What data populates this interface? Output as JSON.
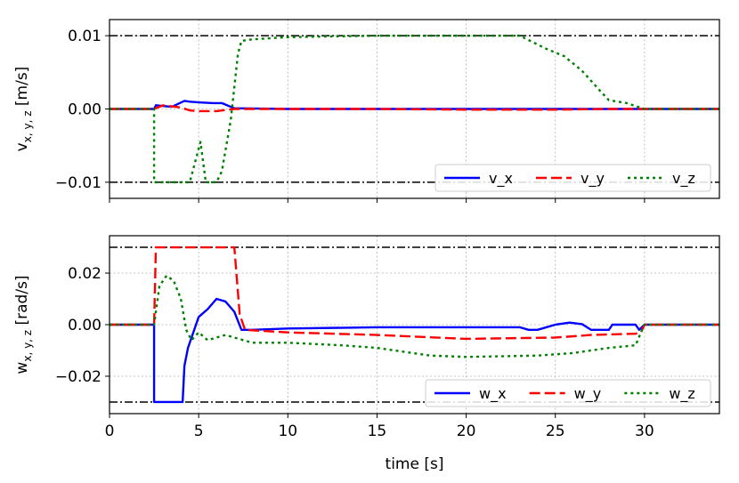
{
  "chart_data": [
    {
      "type": "line",
      "title": "",
      "xlabel": "",
      "ylabel_main": "v",
      "ylabel_sub": "x, y, z",
      "ylabel_unit": "[m/s]",
      "xlim": [
        0,
        34.2
      ],
      "ylim": [
        -0.0122,
        0.0122
      ],
      "yticks": [
        -0.01,
        0.0,
        0.01
      ],
      "ytick_labels": [
        "−0.01",
        "0.00",
        "0.01"
      ],
      "xticks": [
        0,
        5,
        10,
        15,
        20,
        25,
        30
      ],
      "grid": true,
      "legend_position": "lower-right",
      "limit_lines": [
        0.01,
        -0.01
      ],
      "series": [
        {
          "name": "v_x",
          "color": "#0000ff",
          "style": "solid",
          "x": [
            0,
            2.5,
            2.6,
            3.0,
            3.5,
            4.2,
            4.5,
            5.0,
            5.8,
            6.3,
            7.0,
            10,
            20,
            30,
            34.2
          ],
          "y": [
            0,
            0,
            0.0005,
            0.0004,
            0.0003,
            0.0011,
            0.001,
            0.0009,
            0.0008,
            0.0008,
            0.0001,
            0,
            0,
            0,
            0
          ]
        },
        {
          "name": "v_y",
          "color": "#ff0000",
          "style": "dashed",
          "x": [
            0,
            2.5,
            3.0,
            4.0,
            4.5,
            5.0,
            6.0,
            7.0,
            8.0,
            15,
            20,
            25,
            28,
            29.5,
            30,
            34.2
          ],
          "y": [
            0,
            0,
            0.0005,
            0.0002,
            -0.0002,
            -0.0003,
            -0.0003,
            0,
            0,
            0,
            -0.0001,
            -0.0001,
            0,
            0,
            0,
            0
          ]
        },
        {
          "name": "v_z",
          "color": "#008000",
          "style": "dotted",
          "x": [
            0,
            2.5,
            2.5,
            4.5,
            5.1,
            5.4,
            5.6,
            6.0,
            6.3,
            6.8,
            7.2,
            7.4,
            8.0,
            10,
            15,
            20,
            23,
            24.5,
            25.5,
            26.5,
            27.5,
            28,
            29,
            30,
            30.2,
            34.2
          ],
          "y": [
            0,
            0,
            -0.01,
            -0.01,
            -0.0045,
            -0.01,
            -0.01,
            -0.01,
            -0.0085,
            -0.0015,
            0.0075,
            0.0093,
            0.0095,
            0.0098,
            0.01,
            0.01,
            0.01,
            0.0082,
            0.0072,
            0.0052,
            0.0025,
            0.0012,
            0.0008,
            0,
            0,
            0
          ]
        }
      ]
    },
    {
      "type": "line",
      "title": "",
      "xlabel": "time [s]",
      "ylabel_main": "w",
      "ylabel_sub": "x, y, z",
      "ylabel_unit": "[rad/s]",
      "xlim": [
        0,
        34.2
      ],
      "ylim": [
        -0.0345,
        0.0345
      ],
      "yticks": [
        -0.02,
        0.0,
        0.02
      ],
      "ytick_labels": [
        "−0.02",
        "0.00",
        "0.02"
      ],
      "xticks": [
        0,
        5,
        10,
        15,
        20,
        25,
        30
      ],
      "xtick_labels": [
        "0",
        "5",
        "10",
        "15",
        "20",
        "25",
        "30"
      ],
      "grid": true,
      "legend_position": "lower-right",
      "limit_lines": [
        0.03,
        -0.03
      ],
      "series": [
        {
          "name": "w_x",
          "color": "#0000ff",
          "style": "solid",
          "x": [
            0,
            2.5,
            2.5,
            4.1,
            4.2,
            4.4,
            4.6,
            5.0,
            5.5,
            6.0,
            6.5,
            7.0,
            7.4,
            8.0,
            10,
            15,
            20,
            23,
            23.5,
            24,
            25,
            25.8,
            26.5,
            27,
            28,
            28.2,
            29.5,
            29.7,
            30,
            34.2
          ],
          "y": [
            0,
            0,
            -0.03,
            -0.03,
            -0.016,
            -0.009,
            -0.005,
            0.003,
            0.006,
            0.01,
            0.009,
            0.005,
            -0.002,
            -0.002,
            -0.0015,
            -0.001,
            -0.001,
            -0.001,
            -0.002,
            -0.002,
            0,
            0.0008,
            0.0002,
            -0.002,
            -0.002,
            0,
            0,
            -0.002,
            0,
            0
          ]
        },
        {
          "name": "w_y",
          "color": "#ff0000",
          "style": "dashed",
          "x": [
            0,
            2.5,
            2.6,
            3.0,
            3.3,
            7.0,
            7.3,
            7.6,
            10,
            15,
            20,
            25,
            27,
            29.5,
            29.8,
            30,
            34.2
          ],
          "y": [
            0,
            0,
            0.03,
            0.03,
            0.03,
            0.03,
            0.004,
            -0.002,
            -0.003,
            -0.004,
            -0.0055,
            -0.005,
            -0.004,
            -0.0035,
            -0.003,
            0,
            0
          ]
        },
        {
          "name": "w_z",
          "color": "#008000",
          "style": "dotted",
          "x": [
            0,
            2.5,
            2.8,
            3.2,
            3.6,
            4.0,
            4.3,
            4.6,
            5.0,
            5.5,
            6.5,
            8.0,
            10,
            13,
            15,
            18,
            20,
            24,
            26,
            28,
            29.5,
            29.8,
            30,
            34.2
          ],
          "y": [
            0,
            0,
            0.015,
            0.019,
            0.017,
            0.01,
            -0.002,
            -0.006,
            -0.003,
            -0.006,
            -0.004,
            -0.007,
            -0.007,
            -0.008,
            -0.009,
            -0.012,
            -0.0125,
            -0.012,
            -0.011,
            -0.009,
            -0.008,
            -0.003,
            0,
            0
          ]
        }
      ]
    }
  ]
}
